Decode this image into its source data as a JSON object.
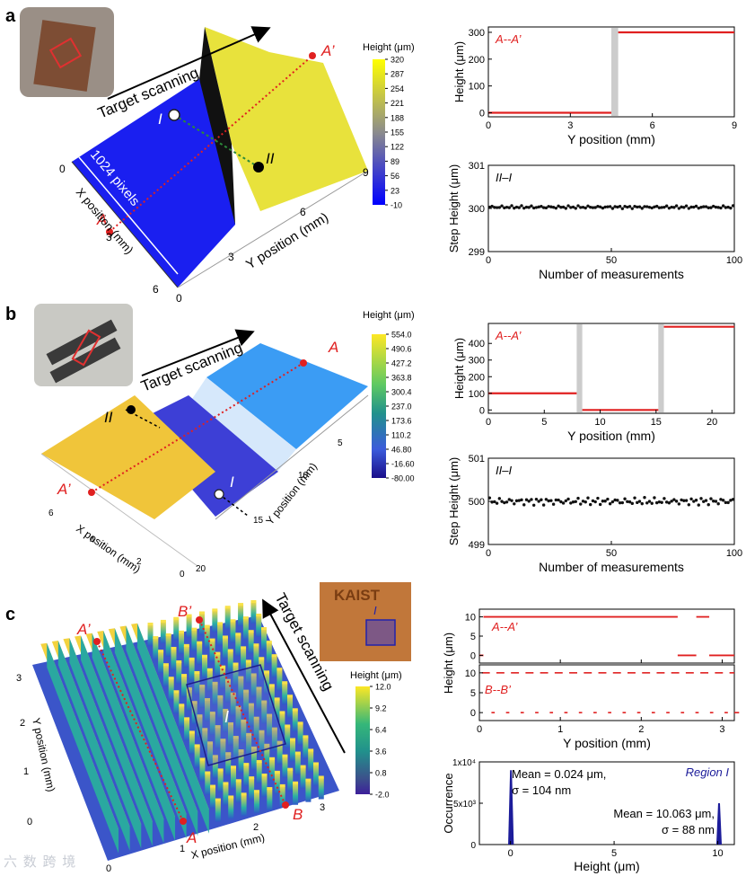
{
  "panel_labels": {
    "a": "a",
    "b": "b",
    "c": "c"
  },
  "watermark": "六 数 跨 境",
  "scan_label": "Target scanning",
  "colorbar_title": "Height (μm)",
  "panel_a": {
    "pixels_label": "1024 pixels",
    "x_axis_label": "X position (mm)",
    "y_axis_label": "Y position (mm)",
    "x_ticks": [
      "0",
      "3",
      "6"
    ],
    "y_ticks": [
      "0",
      "3",
      "6",
      "9"
    ],
    "points": {
      "A": "A",
      "A_prime": "A’",
      "I": "I",
      "II": "II"
    },
    "colorbar_ticks": [
      "320",
      "287",
      "254",
      "221",
      "188",
      "155",
      "122",
      "89",
      "56",
      "23",
      "-10"
    ]
  },
  "panel_b": {
    "x_axis_label": "X position (mm)",
    "y_axis_label": "Y position (mm)",
    "x_ticks": [
      "6",
      "4",
      "2",
      "0"
    ],
    "y_ticks": [
      "5",
      "10",
      "15",
      "20"
    ],
    "points": {
      "A": "A",
      "A_prime": "A’",
      "I": "I",
      "II": "II"
    },
    "colorbar_ticks": [
      "554.0",
      "490.6",
      "427.2",
      "363.8",
      "300.4",
      "237.0",
      "173.6",
      "110.2",
      "46.80",
      "-16.60",
      "-80.00"
    ]
  },
  "panel_c": {
    "x_axis_label": "X position (mm)",
    "y_axis_label": "Y position (mm)",
    "x_ticks": [
      "0",
      "1",
      "2",
      "3"
    ],
    "y_ticks": [
      "0",
      "1",
      "2",
      "3"
    ],
    "points": {
      "A": "A",
      "A_prime": "A’",
      "B": "B",
      "B_prime": "B’",
      "I": "I"
    },
    "inset_text": "KAIST",
    "colorbar_ticks": [
      "12.0",
      "9.2",
      "6.4",
      "3.6",
      "0.8",
      "-2.0"
    ]
  },
  "chart_data": [
    {
      "id": "a_profile",
      "type": "line",
      "label": "A--A’",
      "xlabel": "Y position (mm)",
      "ylabel": "Height (μm)",
      "xlim": [
        0,
        9
      ],
      "ylim": [
        -15,
        320
      ],
      "xticks": [
        0,
        3,
        6,
        9
      ],
      "yticks": [
        0,
        100,
        200,
        300
      ],
      "segments": [
        {
          "x": [
            0,
            4.5
          ],
          "y": [
            0,
            0
          ]
        },
        {
          "x": [
            4.75,
            9
          ],
          "y": [
            300,
            300
          ]
        }
      ],
      "gray_band": [
        4.5,
        4.75
      ]
    },
    {
      "id": "a_step",
      "type": "scatter",
      "label": "II–I",
      "xlabel": "Number of measurements",
      "ylabel": "Step Height (μm)",
      "xlim": [
        0,
        100
      ],
      "ylim": [
        299,
        301
      ],
      "xticks": [
        0,
        50,
        100
      ],
      "yticks": [
        299,
        300,
        301
      ],
      "mean": 300.03,
      "spread": 0.035,
      "n": 100
    },
    {
      "id": "b_profile",
      "type": "line",
      "label": "A--A’",
      "xlabel": "Y position (mm)",
      "ylabel": "Height (μm)",
      "xlim": [
        0,
        22
      ],
      "ylim": [
        -20,
        520
      ],
      "xticks": [
        0,
        5,
        10,
        15,
        20
      ],
      "yticks": [
        0,
        100,
        200,
        300,
        400
      ],
      "segments": [
        {
          "x": [
            0,
            7.9
          ],
          "y": [
            100,
            100
          ]
        },
        {
          "x": [
            8.4,
            15.2
          ],
          "y": [
            0,
            0
          ]
        },
        {
          "x": [
            15.7,
            22
          ],
          "y": [
            500,
            500
          ]
        }
      ],
      "gray_band": [
        [
          7.9,
          8.4
        ],
        [
          15.2,
          15.7
        ]
      ]
    },
    {
      "id": "b_step",
      "type": "scatter",
      "label": "II–I",
      "xlabel": "Number of measurements",
      "ylabel": "Step Height (μm)",
      "xlim": [
        0,
        100
      ],
      "ylim": [
        499,
        501
      ],
      "xticks": [
        0,
        50,
        100
      ],
      "yticks": [
        499,
        500,
        501
      ],
      "mean": 500.0,
      "spread": 0.09,
      "n": 100
    },
    {
      "id": "c_profile_A",
      "type": "line",
      "label": "A--A’",
      "xlabel": "Y position (mm)",
      "ylabel": "Height (μm)",
      "xlim": [
        0,
        3.15
      ],
      "ylim": [
        -2,
        12
      ],
      "xticks": [
        0,
        1,
        2,
        3
      ],
      "yticks": [
        0,
        5,
        10
      ],
      "segments": [
        {
          "x": [
            0,
            0.05
          ],
          "y": [
            0,
            0
          ]
        },
        {
          "x": [
            0.05,
            2.45
          ],
          "y": [
            10,
            10
          ]
        },
        {
          "x": [
            2.45,
            2.68
          ],
          "y": [
            0,
            0
          ]
        },
        {
          "x": [
            2.68,
            2.84
          ],
          "y": [
            10,
            10
          ]
        },
        {
          "x": [
            2.84,
            3.15
          ],
          "y": [
            0,
            0
          ]
        }
      ]
    },
    {
      "id": "c_profile_B",
      "type": "line",
      "label": "B--B’",
      "xlabel": "Y position (mm)",
      "ylabel": "Height (μm)",
      "xlim": [
        0,
        3.15
      ],
      "ylim": [
        -2,
        12
      ],
      "xticks": [
        0,
        1,
        2,
        3
      ],
      "yticks": [
        0,
        5,
        10
      ],
      "period": 0.18,
      "duty": 0.55,
      "high": 10,
      "low": 0
    },
    {
      "id": "c_hist",
      "type": "bar",
      "label": "Region I",
      "xlabel": "Height (μm)",
      "ylabel": "Occurrence",
      "xlim": [
        -1.5,
        10.8
      ],
      "ylim": [
        0,
        10000
      ],
      "xticks": [
        0,
        5,
        10
      ],
      "ytick_labels": [
        "0",
        "5x10³",
        "1x10⁴"
      ],
      "peaks": [
        {
          "center": 0.024,
          "height": 9000,
          "width": 0.1
        },
        {
          "center": 10.063,
          "height": 5000,
          "width": 0.09
        }
      ],
      "annotations": [
        {
          "text": "Mean = 0.024 μm,",
          "text2": "σ = 104 nm"
        },
        {
          "text": "Mean = 10.063 μm,",
          "text2": "σ = 88 nm"
        }
      ]
    }
  ]
}
